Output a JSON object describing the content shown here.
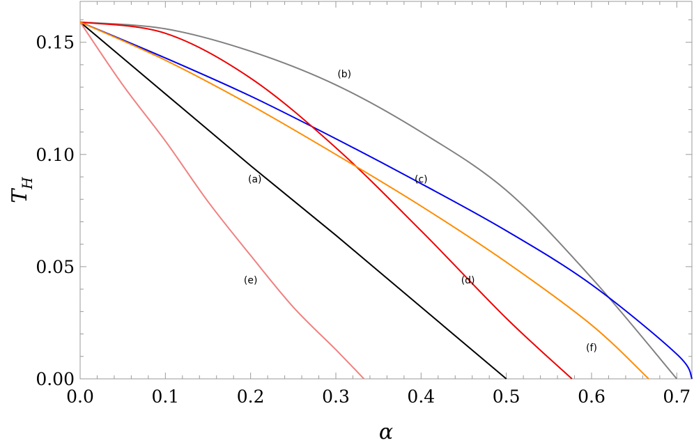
{
  "chart_data": {
    "type": "line",
    "title": "",
    "xlabel": "α",
    "ylabel_main": "T",
    "ylabel_sub": "H",
    "xlim": [
      0,
      0.72
    ],
    "ylim": [
      0,
      0.16
    ],
    "xticks": [
      0.0,
      0.1,
      0.2,
      0.3,
      0.4,
      0.5,
      0.6,
      0.7
    ],
    "xtick_labels": [
      "0.0",
      "0.1",
      "0.2",
      "0.3",
      "0.4",
      "0.5",
      "0.6",
      "0.7"
    ],
    "yticks": [
      0.0,
      0.05,
      0.1,
      0.15
    ],
    "ytick_labels": [
      "0.00",
      "0.05",
      "0.10",
      "0.15"
    ],
    "grid": false,
    "legend": "none",
    "series": [
      {
        "label": "(a)",
        "color": "#000000",
        "label_at": [
          0.205,
          0.089
        ],
        "x": [
          0,
          0.1,
          0.2,
          0.3,
          0.4,
          0.5
        ],
        "y": [
          0.159,
          0.127,
          0.095,
          0.064,
          0.032,
          0.0
        ]
      },
      {
        "label": "(b)",
        "color": "#808080",
        "label_at": [
          0.31,
          0.136
        ],
        "x": [
          0,
          0.1,
          0.2,
          0.3,
          0.4,
          0.5,
          0.6,
          0.7
        ],
        "y": [
          0.159,
          0.156,
          0.146,
          0.131,
          0.11,
          0.084,
          0.045,
          0.0
        ]
      },
      {
        "label": "(c)",
        "color": "#0000ee",
        "label_at": [
          0.4,
          0.089
        ],
        "x": [
          0,
          0.1,
          0.2,
          0.3,
          0.4,
          0.5,
          0.6,
          0.7,
          0.718
        ],
        "y": [
          0.159,
          0.143,
          0.126,
          0.107,
          0.087,
          0.066,
          0.042,
          0.011,
          0.0
        ]
      },
      {
        "label": "(d)",
        "color": "#ee0000",
        "label_at": [
          0.455,
          0.044
        ],
        "x": [
          0,
          0.1,
          0.2,
          0.3,
          0.4,
          0.5,
          0.577
        ],
        "y": [
          0.159,
          0.154,
          0.134,
          0.103,
          0.066,
          0.027,
          0.0
        ]
      },
      {
        "label": "(e)",
        "color": "#f08080",
        "label_at": [
          0.2,
          0.044
        ],
        "x": [
          0,
          0.05,
          0.1,
          0.15,
          0.2,
          0.25,
          0.3,
          0.333
        ],
        "y": [
          0.159,
          0.131,
          0.106,
          0.079,
          0.055,
          0.032,
          0.013,
          0.0
        ]
      },
      {
        "label": "(f)",
        "color": "#ff8c00",
        "label_at": [
          0.6,
          0.014
        ],
        "x": [
          0,
          0.1,
          0.2,
          0.3,
          0.4,
          0.5,
          0.6,
          0.667
        ],
        "y": [
          0.159,
          0.142,
          0.122,
          0.1,
          0.077,
          0.052,
          0.024,
          0.0
        ]
      }
    ]
  }
}
